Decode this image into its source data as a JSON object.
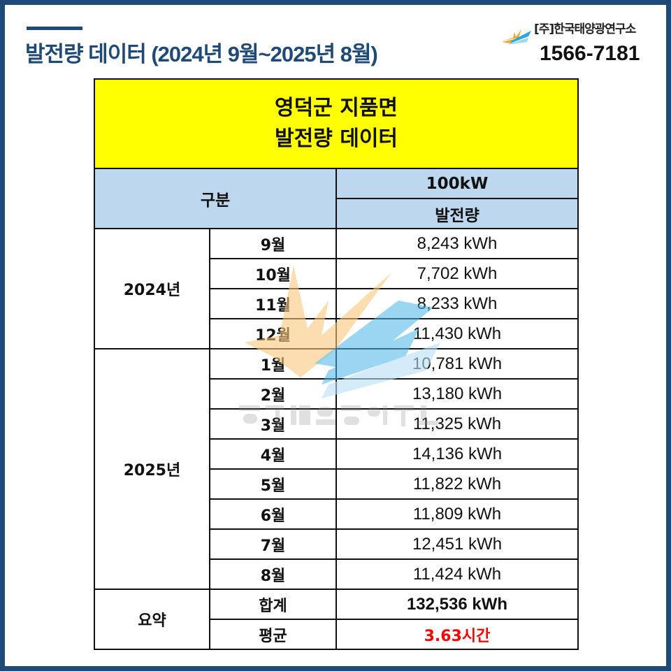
{
  "header": {
    "title": "발전량 데이터 (2024년 9월~2025년 8월)",
    "brand_name": "[주]한국태양광연구소",
    "phone": "1566-7181"
  },
  "table": {
    "title_line1": "영덕군 지품면",
    "title_line2": "발전량 데이터",
    "col_category": "구분",
    "col_capacity": "100kW",
    "col_generation": "발전량",
    "groups": [
      {
        "year": "2024년",
        "rows": [
          {
            "month": "9월",
            "value": "8,243 kWh"
          },
          {
            "month": "10월",
            "value": "7,702 kWh"
          },
          {
            "month": "11월",
            "value": "8,233 kWh"
          },
          {
            "month": "12월",
            "value": "11,430 kWh"
          }
        ]
      },
      {
        "year": "2025년",
        "rows": [
          {
            "month": "1월",
            "value": "10,781 kWh"
          },
          {
            "month": "2월",
            "value": "13,180 kWh"
          },
          {
            "month": "3월",
            "value": "11,325 kWh"
          },
          {
            "month": "4월",
            "value": "14,136 kWh"
          },
          {
            "month": "5월",
            "value": "11,822 kWh"
          },
          {
            "month": "6월",
            "value": "11,809 kWh"
          },
          {
            "month": "7월",
            "value": "12,451 kWh"
          },
          {
            "month": "8월",
            "value": "11,424 kWh"
          }
        ]
      }
    ],
    "summary": {
      "label": "요약",
      "total_label": "합계",
      "total_value": "132,536 kWh",
      "avg_label": "평균",
      "avg_value": "3.63시간"
    }
  },
  "watermark": {
    "text": "한국태양광연구소"
  },
  "colors": {
    "frame": "#1f4a78",
    "title_band": "#ffff00",
    "header": "#bdd7ee",
    "average": "#ff0000"
  }
}
